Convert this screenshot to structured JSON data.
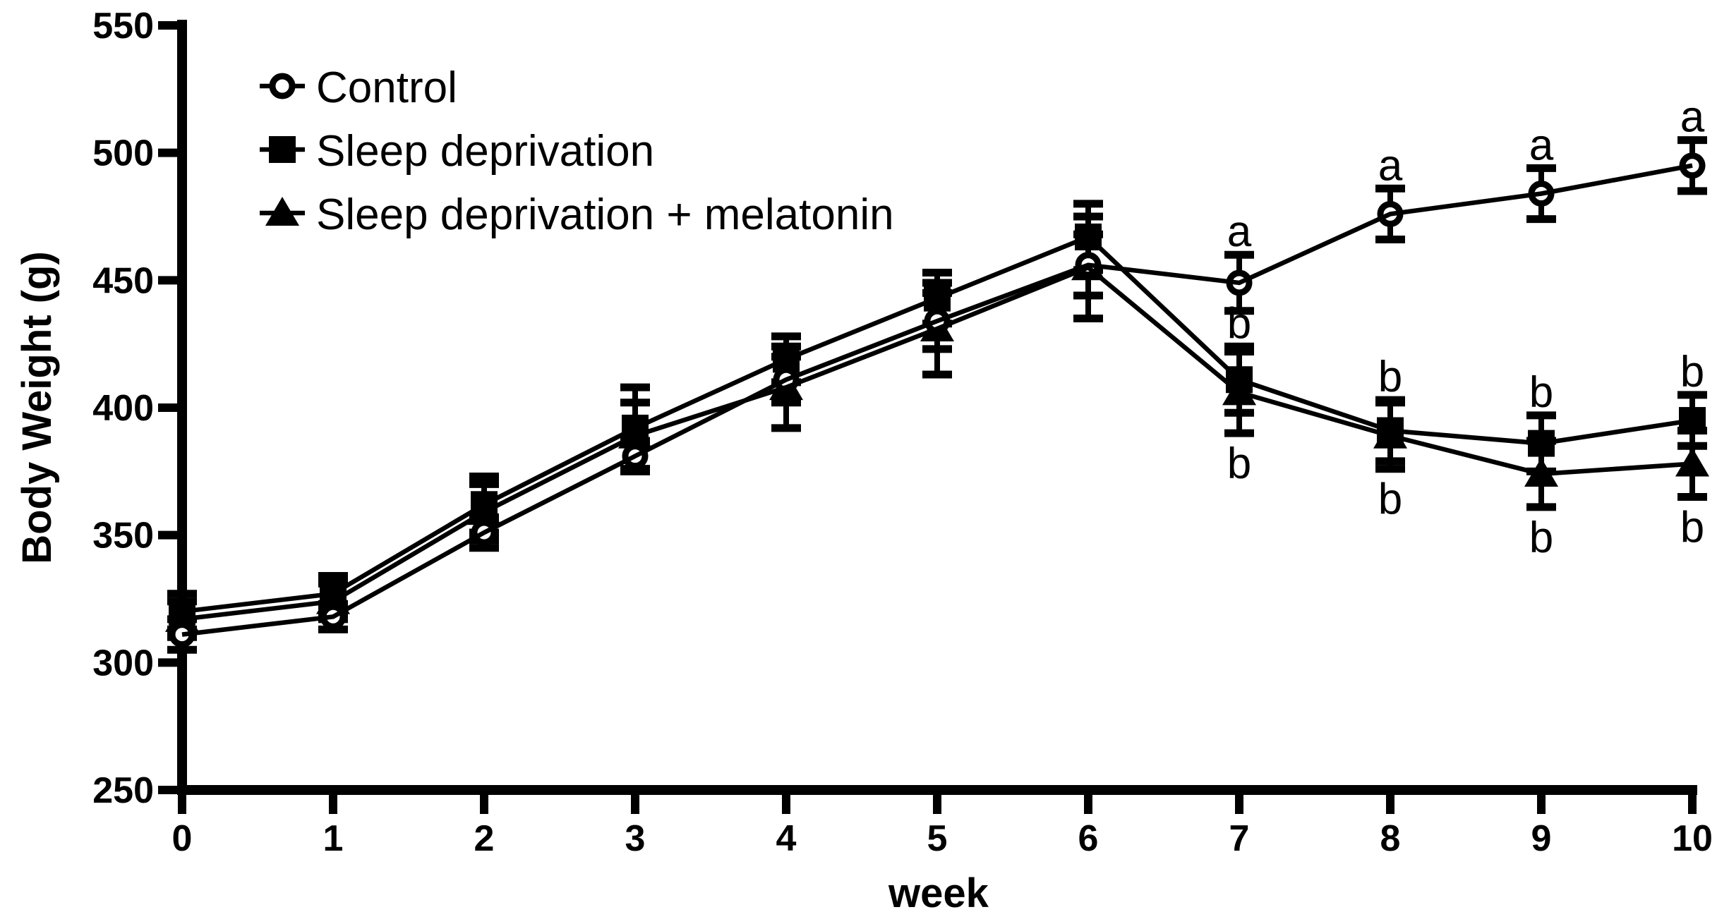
{
  "figure": {
    "background": "#ffffff",
    "ink": "#000000"
  },
  "chart_data": {
    "type": "line",
    "title": "",
    "xlabel": "week",
    "ylabel": "Body Weight (g)",
    "xlim": [
      0,
      10
    ],
    "ylim": [
      250,
      550
    ],
    "x_ticks": [
      0,
      1,
      2,
      3,
      4,
      5,
      6,
      7,
      8,
      9,
      10
    ],
    "y_ticks": [
      250,
      300,
      350,
      400,
      450,
      500,
      550
    ],
    "grid": false,
    "legend_position": "top-left-inside",
    "x": [
      0,
      1,
      2,
      3,
      4,
      5,
      6,
      7,
      8,
      9,
      10
    ],
    "series": [
      {
        "name": "Control",
        "marker": "open-circle-icon",
        "color": "#000000",
        "values": [
          311,
          318,
          351,
          381,
          411,
          434,
          456,
          449,
          476,
          484,
          495
        ],
        "errors": [
          6,
          5,
          6,
          6,
          9,
          11,
          12,
          11,
          10,
          10,
          10
        ]
      },
      {
        "name": "Sleep deprivation",
        "marker": "filled-square-icon",
        "color": "#000000",
        "values": [
          320,
          327,
          362,
          392,
          419,
          443,
          467,
          411,
          391,
          386,
          395
        ],
        "errors": [
          7,
          7,
          11,
          16,
          9,
          10,
          13,
          13,
          12,
          11,
          10
        ]
      },
      {
        "name": "Sleep deprivation + melatonin",
        "marker": "filled-triangle-icon",
        "color": "#000000",
        "values": [
          317,
          324,
          359,
          389,
          408,
          431,
          455,
          406,
          389,
          374,
          378
        ],
        "errors": [
          7,
          7,
          11,
          13,
          16,
          18,
          20,
          16,
          13,
          13,
          13
        ]
      }
    ],
    "annotations": [
      {
        "label": "a",
        "week": 7,
        "series": 0,
        "position": "above"
      },
      {
        "label": "a",
        "week": 8,
        "series": 0,
        "position": "above"
      },
      {
        "label": "a",
        "week": 9,
        "series": 0,
        "position": "above"
      },
      {
        "label": "a",
        "week": 10,
        "series": 0,
        "position": "above"
      },
      {
        "label": "b",
        "week": 7,
        "series": 1,
        "position": "above"
      },
      {
        "label": "b",
        "week": 8,
        "series": 1,
        "position": "above"
      },
      {
        "label": "b",
        "week": 9,
        "series": 1,
        "position": "above"
      },
      {
        "label": "b",
        "week": 10,
        "series": 1,
        "position": "above"
      },
      {
        "label": "b",
        "week": 7,
        "series": 2,
        "position": "below"
      },
      {
        "label": "b",
        "week": 8,
        "series": 2,
        "position": "below"
      },
      {
        "label": "b",
        "week": 9,
        "series": 2,
        "position": "below"
      },
      {
        "label": "b",
        "week": 10,
        "series": 2,
        "position": "below"
      }
    ]
  }
}
